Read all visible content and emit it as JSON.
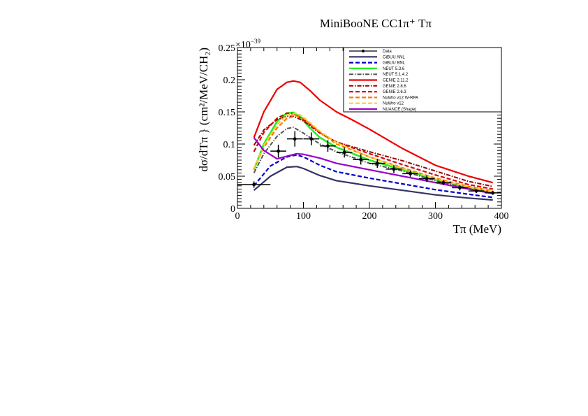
{
  "chart_data": {
    "type": "line",
    "title": "MiniBooNE CC1π⁺ Tπ",
    "xlabel": "Tπ (MeV)",
    "ylabel": "dσ/dTπ } (cm²/MeV/CH₂)",
    "exponent_label": "×10",
    "exponent_value": "−39",
    "xlim": [
      0,
      400
    ],
    "ylim": [
      0,
      0.25
    ],
    "x_ticks": [
      "0",
      "100",
      "200",
      "300",
      "400"
    ],
    "y_ticks": [
      "0",
      "0.05",
      "0.1",
      "0.15",
      "0.2",
      "0.25"
    ],
    "grid": false,
    "legend_position": "top-right",
    "data": {
      "name": "Data",
      "color": "#000000",
      "points": [
        {
          "x": 25,
          "y": 0.037,
          "xerr": 25,
          "yerr": 0.005
        },
        {
          "x": 62,
          "y": 0.089,
          "xerr": 12,
          "yerr": 0.01
        },
        {
          "x": 87,
          "y": 0.108,
          "xerr": 12,
          "yerr": 0.012
        },
        {
          "x": 112,
          "y": 0.108,
          "xerr": 12,
          "yerr": 0.01
        },
        {
          "x": 137,
          "y": 0.097,
          "xerr": 12,
          "yerr": 0.009
        },
        {
          "x": 162,
          "y": 0.087,
          "xerr": 12,
          "yerr": 0.008
        },
        {
          "x": 187,
          "y": 0.076,
          "xerr": 12,
          "yerr": 0.008
        },
        {
          "x": 212,
          "y": 0.07,
          "xerr": 12,
          "yerr": 0.007
        },
        {
          "x": 237,
          "y": 0.061,
          "xerr": 12,
          "yerr": 0.006
        },
        {
          "x": 262,
          "y": 0.054,
          "xerr": 12,
          "yerr": 0.005
        },
        {
          "x": 287,
          "y": 0.046,
          "xerr": 12,
          "yerr": 0.005
        },
        {
          "x": 312,
          "y": 0.04,
          "xerr": 12,
          "yerr": 0.004
        },
        {
          "x": 337,
          "y": 0.032,
          "xerr": 12,
          "yerr": 0.004
        },
        {
          "x": 362,
          "y": 0.027,
          "xerr": 12,
          "yerr": 0.003
        },
        {
          "x": 387,
          "y": 0.024,
          "xerr": 12,
          "yerr": 0.003
        }
      ]
    },
    "series": [
      {
        "name": "GiBUU ANL",
        "color": "#333366",
        "dash": "solid",
        "width": 2.2,
        "x": [
          25,
          50,
          75,
          90,
          100,
          125,
          150,
          200,
          250,
          300,
          350,
          387
        ],
        "y": [
          0.028,
          0.05,
          0.064,
          0.065,
          0.062,
          0.051,
          0.043,
          0.035,
          0.028,
          0.021,
          0.016,
          0.013
        ]
      },
      {
        "name": "GiBUU BNL",
        "color": "#0000cc",
        "dash": "dashed",
        "width": 2.2,
        "x": [
          25,
          50,
          75,
          90,
          100,
          125,
          150,
          200,
          250,
          300,
          350,
          387
        ],
        "y": [
          0.035,
          0.066,
          0.08,
          0.083,
          0.08,
          0.067,
          0.057,
          0.047,
          0.038,
          0.029,
          0.022,
          0.017
        ]
      },
      {
        "name": "NEUT 5.3.6",
        "color": "#22ee22",
        "dash": "solid",
        "width": 2.6,
        "x": [
          25,
          40,
          60,
          75,
          85,
          95,
          110,
          125,
          150,
          200,
          250,
          300,
          350,
          387
        ],
        "y": [
          0.06,
          0.1,
          0.135,
          0.148,
          0.149,
          0.142,
          0.125,
          0.11,
          0.095,
          0.075,
          0.06,
          0.045,
          0.032,
          0.025
        ]
      },
      {
        "name": "NEUT 5.1.4.2",
        "color": "#555555",
        "dash": "dotdash",
        "width": 2,
        "x": [
          25,
          40,
          60,
          75,
          85,
          100,
          125,
          150,
          200,
          250,
          300,
          350,
          387
        ],
        "y": [
          0.055,
          0.085,
          0.112,
          0.124,
          0.126,
          0.117,
          0.1,
          0.088,
          0.07,
          0.058,
          0.043,
          0.031,
          0.025
        ]
      },
      {
        "name": "GENIE 2.11.2",
        "color": "#ee0000",
        "dash": "solid",
        "width": 2.2,
        "x": [
          25,
          40,
          60,
          75,
          85,
          95,
          110,
          125,
          150,
          175,
          200,
          250,
          300,
          350,
          387
        ],
        "y": [
          0.11,
          0.15,
          0.185,
          0.196,
          0.198,
          0.196,
          0.183,
          0.168,
          0.15,
          0.137,
          0.123,
          0.093,
          0.067,
          0.05,
          0.04
        ]
      },
      {
        "name": "GENIE 2.8.6",
        "color": "#990000",
        "dash": "dotdash",
        "width": 2,
        "x": [
          25,
          40,
          60,
          75,
          85,
          100,
          125,
          150,
          200,
          250,
          300,
          350,
          387
        ],
        "y": [
          0.098,
          0.122,
          0.138,
          0.143,
          0.143,
          0.136,
          0.117,
          0.103,
          0.088,
          0.074,
          0.058,
          0.042,
          0.034
        ]
      },
      {
        "name": "GENIE 2.6.3",
        "color": "#dd0000",
        "dash": "dashed",
        "width": 2.2,
        "x": [
          25,
          40,
          60,
          75,
          85,
          100,
          125,
          150,
          200,
          250,
          300,
          350,
          387
        ],
        "y": [
          0.088,
          0.118,
          0.14,
          0.148,
          0.147,
          0.138,
          0.118,
          0.103,
          0.085,
          0.068,
          0.052,
          0.037,
          0.03
        ]
      },
      {
        "name": "NuWro v12 W-RPA",
        "color": "#ff7700",
        "dash": "dashed",
        "width": 2.2,
        "x": [
          25,
          40,
          60,
          75,
          90,
          100,
          125,
          150,
          200,
          250,
          300,
          350,
          387
        ],
        "y": [
          0.062,
          0.095,
          0.125,
          0.14,
          0.144,
          0.14,
          0.118,
          0.1,
          0.08,
          0.063,
          0.047,
          0.034,
          0.027
        ]
      },
      {
        "name": "NuWro v12",
        "color": "#ffcc33",
        "dash": "dashed",
        "width": 2.2,
        "x": [
          25,
          40,
          60,
          75,
          90,
          100,
          125,
          150,
          200,
          250,
          300,
          350,
          387
        ],
        "y": [
          0.062,
          0.098,
          0.13,
          0.145,
          0.148,
          0.142,
          0.12,
          0.102,
          0.08,
          0.062,
          0.046,
          0.033,
          0.026
        ]
      },
      {
        "name": "NUANCE (Shape)",
        "color": "#9900cc",
        "dash": "solid",
        "width": 2.2,
        "x": [
          25,
          40,
          60,
          75,
          90,
          100,
          125,
          150,
          200,
          250,
          300,
          350,
          387
        ],
        "y": [
          0.11,
          0.09,
          0.077,
          0.081,
          0.085,
          0.084,
          0.078,
          0.07,
          0.06,
          0.05,
          0.04,
          0.03,
          0.023
        ]
      }
    ]
  }
}
